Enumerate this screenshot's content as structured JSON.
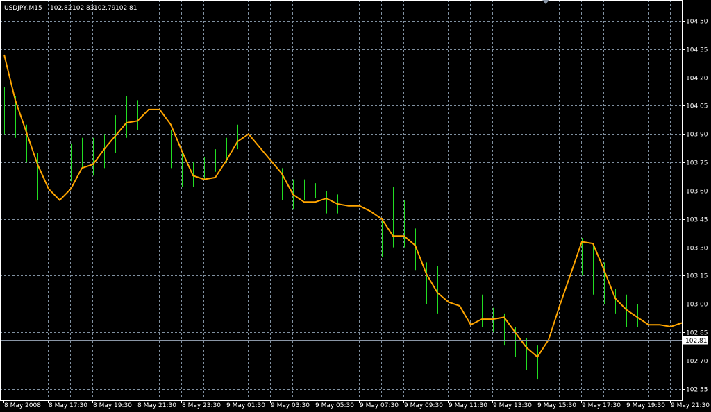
{
  "header": {
    "symbol": "USDJPY,M15",
    "open": "102.82",
    "high": "102.83",
    "low": "102.79",
    "close": "102.81"
  },
  "colors": {
    "background": "#000000",
    "grid": "#8090a0",
    "bars": "#22dd22",
    "ma_line": "#ffa500",
    "axis": "#ffffff",
    "bid_line": "#8a96a6"
  },
  "chart_data": {
    "type": "line",
    "title": "USDJPY,M15",
    "grid": true,
    "ylim": [
      102.49,
      104.6
    ],
    "y_ticks": [
      "104.50",
      "104.35",
      "104.20",
      "104.05",
      "103.90",
      "103.75",
      "103.60",
      "103.45",
      "103.30",
      "103.15",
      "103.00",
      "102.85",
      "102.70",
      "102.55"
    ],
    "x_tick_labels": [
      "8 May 2008",
      "8 May 17:30",
      "8 May 19:30",
      "8 May 21:30",
      "8 May 23:30",
      "9 May 01:30",
      "9 May 03:30",
      "9 May 05:30",
      "9 May 07:30",
      "9 May 09:30",
      "9 May 11:30",
      "9 May 13:30",
      "9 May 15:30",
      "9 May 17:30",
      "9 May 19:30",
      "9 May 21:30"
    ],
    "x_start": "8 May 2008 15:30",
    "x_step_minutes": 30,
    "current_price": "102.81",
    "bars_high_low": [
      [
        104.15,
        103.9
      ],
      [
        104.1,
        103.88
      ],
      [
        103.95,
        103.75
      ],
      [
        103.8,
        103.55
      ],
      [
        103.68,
        103.42
      ],
      [
        103.78,
        103.55
      ],
      [
        103.85,
        103.65
      ],
      [
        103.88,
        103.72
      ],
      [
        103.88,
        103.68
      ],
      [
        103.9,
        103.72
      ],
      [
        104.0,
        103.8
      ],
      [
        104.1,
        103.88
      ],
      [
        104.08,
        103.92
      ],
      [
        104.08,
        103.95
      ],
      [
        104.02,
        103.88
      ],
      [
        103.92,
        103.72
      ],
      [
        103.8,
        103.62
      ],
      [
        103.75,
        103.62
      ],
      [
        103.78,
        103.66
      ],
      [
        103.82,
        103.7
      ],
      [
        103.88,
        103.75
      ],
      [
        103.95,
        103.82
      ],
      [
        103.92,
        103.8
      ],
      [
        103.88,
        103.7
      ],
      [
        103.8,
        103.66
      ],
      [
        103.72,
        103.55
      ],
      [
        103.66,
        103.5
      ],
      [
        103.66,
        103.55
      ],
      [
        103.64,
        103.56
      ],
      [
        103.6,
        103.48
      ],
      [
        103.58,
        103.48
      ],
      [
        103.56,
        103.46
      ],
      [
        103.52,
        103.44
      ],
      [
        103.5,
        103.4
      ],
      [
        103.45,
        103.25
      ],
      [
        103.62,
        103.3
      ],
      [
        103.55,
        103.3
      ],
      [
        103.4,
        103.18
      ],
      [
        103.22,
        103.0
      ],
      [
        103.2,
        102.95
      ],
      [
        103.15,
        102.98
      ],
      [
        103.1,
        102.9
      ],
      [
        103.05,
        102.82
      ],
      [
        103.05,
        102.88
      ],
      [
        102.98,
        102.85
      ],
      [
        102.95,
        102.78
      ],
      [
        102.88,
        102.72
      ],
      [
        102.82,
        102.65
      ],
      [
        102.78,
        102.6
      ],
      [
        103.0,
        102.7
      ],
      [
        103.18,
        102.95
      ],
      [
        103.25,
        103.05
      ],
      [
        103.35,
        103.15
      ],
      [
        103.32,
        103.05
      ],
      [
        103.22,
        103.0
      ],
      [
        103.08,
        102.95
      ],
      [
        103.05,
        102.88
      ],
      [
        103.0,
        102.88
      ],
      [
        103.0,
        102.88
      ],
      [
        102.98,
        102.85
      ],
      [
        102.97,
        102.86
      ],
      [
        102.96,
        102.81
      ]
    ],
    "ma_values": [
      104.32,
      104.08,
      103.91,
      103.74,
      103.61,
      103.55,
      103.61,
      103.72,
      103.74,
      103.82,
      103.89,
      103.96,
      103.97,
      104.03,
      104.03,
      103.95,
      103.81,
      103.68,
      103.66,
      103.67,
      103.76,
      103.86,
      103.9,
      103.83,
      103.76,
      103.69,
      103.58,
      103.54,
      103.54,
      103.56,
      103.53,
      103.52,
      103.52,
      103.49,
      103.45,
      103.36,
      103.36,
      103.31,
      103.16,
      103.06,
      103.01,
      102.99,
      102.89,
      102.92,
      102.92,
      102.93,
      102.85,
      102.77,
      102.72,
      102.81,
      102.99,
      103.16,
      103.33,
      103.32,
      103.18,
      103.03,
      102.97,
      102.93,
      102.89,
      102.89,
      102.88,
      102.9
    ]
  }
}
